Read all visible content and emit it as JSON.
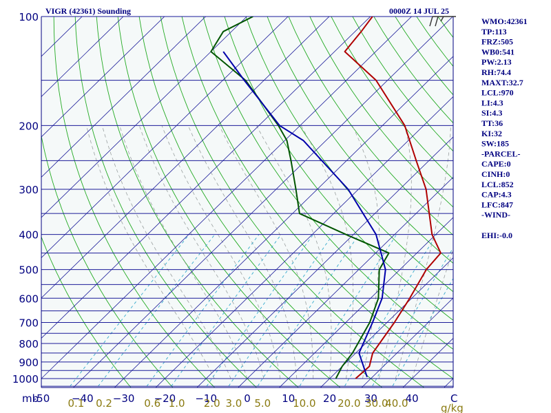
{
  "chart_data": {
    "type": "line",
    "title": "VIGR (42361) Sounding",
    "time_label": "0000Z 14 JUL 25",
    "pressure_unit": "mb",
    "mixing_ratio_unit": "g/kg",
    "pressure_axis": {
      "scale": "log",
      "range": [
        1000,
        100
      ],
      "ticks": [
        100,
        200,
        300,
        400,
        500,
        600,
        700,
        800,
        900,
        1000
      ],
      "tick_labels": [
        "100",
        "200",
        "300",
        "400",
        "500",
        "600",
        "700",
        "800",
        "900",
        "1000"
      ]
    },
    "temperature_axis": {
      "range": [
        -50,
        50
      ],
      "ticks": [
        -50,
        -40,
        -30,
        -20,
        -10,
        0,
        10,
        20,
        30,
        40
      ],
      "tick_labels": [
        "-50",
        "−40",
        "−30",
        "−20",
        "−10",
        "0",
        "10",
        "20",
        "30",
        "40"
      ],
      "end_label": "C"
    },
    "mixing_ratio_labels": [
      "0.1",
      "0.2",
      "0.6",
      "1.0",
      "2.0",
      "3.0",
      "5.0",
      "10.0",
      "20.0",
      "30.0",
      "40.0"
    ],
    "series": [
      {
        "role": "temperature",
        "color": "#b00000",
        "points": [
          {
            "p": 1000,
            "t": 26.3
          },
          {
            "p": 925,
            "t": 26.6
          },
          {
            "p": 850,
            "t": 24.1
          },
          {
            "p": 700,
            "t": 21.8
          },
          {
            "p": 600,
            "t": 19.5
          },
          {
            "p": 500,
            "t": 16.4
          },
          {
            "p": 450,
            "t": 15.8
          },
          {
            "p": 400,
            "t": 9.1
          },
          {
            "p": 300,
            "t": -3.6
          },
          {
            "p": 250,
            "t": -13.1
          },
          {
            "p": 200,
            "t": -24.6
          },
          {
            "p": 150,
            "t": -42.8
          },
          {
            "p": 125,
            "t": -57.5
          },
          {
            "p": 110,
            "t": -58.5
          },
          {
            "p": 100,
            "t": -59.5
          }
        ]
      },
      {
        "role": "dewpoint",
        "color": "#005500",
        "points": [
          {
            "p": 1000,
            "t": 21.5
          },
          {
            "p": 925,
            "t": 20.0
          },
          {
            "p": 850,
            "t": 19.2
          },
          {
            "p": 700,
            "t": 15.8
          },
          {
            "p": 600,
            "t": 11.9
          },
          {
            "p": 500,
            "t": 5.0
          },
          {
            "p": 450,
            "t": 3.2
          },
          {
            "p": 400,
            "t": -11.8
          },
          {
            "p": 350,
            "t": -28.3
          },
          {
            "p": 300,
            "t": -35.2
          },
          {
            "p": 250,
            "t": -43.5
          },
          {
            "p": 220,
            "t": -49.5
          },
          {
            "p": 200,
            "t": -55.3
          },
          {
            "p": 150,
            "t": -74.5
          },
          {
            "p": 125,
            "t": -90.0
          },
          {
            "p": 110,
            "t": -92.0
          },
          {
            "p": 100,
            "t": -88.5
          }
        ]
      },
      {
        "role": "parcel",
        "color": "#0000aa",
        "points": [
          {
            "p": 990,
            "t": 28.7
          },
          {
            "p": 850,
            "t": 20.8
          },
          {
            "p": 700,
            "t": 16.5
          },
          {
            "p": 600,
            "t": 12.8
          },
          {
            "p": 500,
            "t": 6.5
          },
          {
            "p": 400,
            "t": -4.5
          },
          {
            "p": 300,
            "t": -22.5
          },
          {
            "p": 220,
            "t": -45.5
          },
          {
            "p": 200,
            "t": -55.0
          },
          {
            "p": 150,
            "t": -74.8
          },
          {
            "p": 125,
            "t": -87.0
          }
        ]
      }
    ],
    "wind_barbs": [
      {
        "p": 100,
        "direction_deg": 270,
        "speed_kt": 25
      }
    ],
    "indices": [
      "WMO:42361",
      "TP:113",
      "FRZ:505",
      "WB0:541",
      "PW:2.13",
      "RH:74.4",
      "MAXT:32.7",
      "LCL:970",
      "LI:4.3",
      "SI:4.3",
      "TT:36",
      "KI:32",
      "SW:185",
      "-PARCEL-",
      "CAPE:0",
      "CINH:0",
      "LCL:852",
      "CAP:4.3",
      "LFC:847",
      "-WIND-",
      "",
      "EHI:-0.0"
    ]
  },
  "colors": {
    "background": "#f5f9f9",
    "axis_text": "#000080",
    "isobar": "#1a1a99",
    "isotherm": "#1a1a99",
    "dry_adiabat": "#22aa22",
    "moist_adiabat": "#9aa0a0",
    "mixing_ratio": "#33aacc",
    "mixing_label": "#8a7a10"
  }
}
